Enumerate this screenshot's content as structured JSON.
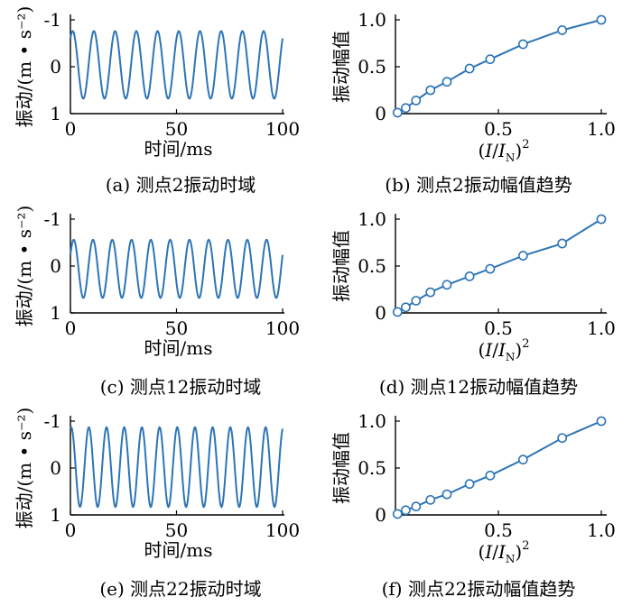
{
  "chart_data": [
    {
      "id": "a",
      "type": "line",
      "caption": "(a)  测点2振动时域",
      "xlabel": "时间/ms",
      "ylabel": "振动/(m • s⁻²)",
      "xlim": [
        0,
        100
      ],
      "ylim": [
        -1,
        1
      ],
      "xticks": [
        "0",
        "50",
        "100"
      ],
      "yticks": [
        "-1",
        "0",
        "1"
      ],
      "signal": {
        "amplitude": 0.72,
        "offset": 0.04,
        "cycles": 10,
        "phase": 0.9
      }
    },
    {
      "id": "b",
      "type": "line",
      "caption": "(b)  测点2振动幅值趋势",
      "xlabel": "(I/I_N)²",
      "xlabel_main": "(",
      "xlabel_I": "I",
      "xlabel_slash": "/",
      "xlabel_IN": "I",
      "xlabel_sub": "N",
      "xlabel_close": ")",
      "xlabel_sup": "2",
      "ylabel": "振动幅值",
      "xlim": [
        0,
        1.0
      ],
      "ylim": [
        0,
        1.0
      ],
      "xticks": [
        "0.5",
        "1.0"
      ],
      "yticks": [
        "0",
        "0.5",
        "1.0"
      ],
      "x": [
        0.01,
        0.05,
        0.1,
        0.17,
        0.25,
        0.36,
        0.46,
        0.62,
        0.81,
        1.0
      ],
      "values": [
        0.01,
        0.06,
        0.14,
        0.25,
        0.34,
        0.48,
        0.58,
        0.74,
        0.89,
        1.0
      ]
    },
    {
      "id": "c",
      "type": "line",
      "caption": "(c)  测点12振动时域",
      "xlabel": "时间/ms",
      "ylabel": "振动/(m • s⁻²)",
      "xlim": [
        0,
        100
      ],
      "ylim": [
        -1,
        1
      ],
      "xticks": [
        "0",
        "50",
        "100"
      ],
      "yticks": [
        "-1",
        "0",
        "1"
      ],
      "signal": {
        "amplitude": 0.62,
        "offset": -0.06,
        "cycles": 11,
        "phase": 0.5
      }
    },
    {
      "id": "d",
      "type": "line",
      "caption": "(d)  测点12振动幅值趋势",
      "xlabel": "(I/I_N)²",
      "xlabel_main": "(",
      "xlabel_I": "I",
      "xlabel_slash": "/",
      "xlabel_IN": "I",
      "xlabel_sub": "N",
      "xlabel_close": ")",
      "xlabel_sup": "2",
      "ylabel": "振动幅值",
      "xlim": [
        0,
        1.0
      ],
      "ylim": [
        0,
        1.0
      ],
      "xticks": [
        "0.5",
        "1.0"
      ],
      "yticks": [
        "0",
        "0.5",
        "1.0"
      ],
      "x": [
        0.01,
        0.05,
        0.1,
        0.17,
        0.25,
        0.36,
        0.46,
        0.62,
        0.81,
        1.0
      ],
      "values": [
        0.01,
        0.06,
        0.13,
        0.22,
        0.3,
        0.39,
        0.47,
        0.61,
        0.74,
        1.0
      ]
    },
    {
      "id": "e",
      "type": "line",
      "caption": "(e)  测点22振动时域",
      "xlabel": "时间/ms",
      "ylabel": "振动/(m • s⁻²)",
      "xlim": [
        0,
        100
      ],
      "ylim": [
        -1,
        1
      ],
      "xticks": [
        "0",
        "50",
        "100"
      ],
      "yticks": [
        "-1",
        "0",
        "1"
      ],
      "signal": {
        "amplitude": 0.85,
        "offset": 0.02,
        "cycles": 12,
        "phase": 1.3
      }
    },
    {
      "id": "f",
      "type": "line",
      "caption": "(f)  测点22振动幅值趋势",
      "xlabel": "(I/I_N)²",
      "xlabel_main": "(",
      "xlabel_I": "I",
      "xlabel_slash": "/",
      "xlabel_IN": "I",
      "xlabel_sub": "N",
      "xlabel_close": ")",
      "xlabel_sup": "2",
      "ylabel": "振动幅值",
      "xlim": [
        0,
        1.0
      ],
      "ylim": [
        0,
        1.0
      ],
      "xticks": [
        "0.5",
        "1.0"
      ],
      "yticks": [
        "0",
        "0.5",
        "1.0"
      ],
      "x": [
        0.01,
        0.05,
        0.1,
        0.17,
        0.25,
        0.36,
        0.46,
        0.62,
        0.81,
        1.0
      ],
      "values": [
        0.01,
        0.05,
        0.09,
        0.16,
        0.22,
        0.33,
        0.42,
        0.59,
        0.82,
        1.0
      ]
    }
  ],
  "colors": {
    "series": "#2E75B6",
    "axis": "#000000"
  }
}
